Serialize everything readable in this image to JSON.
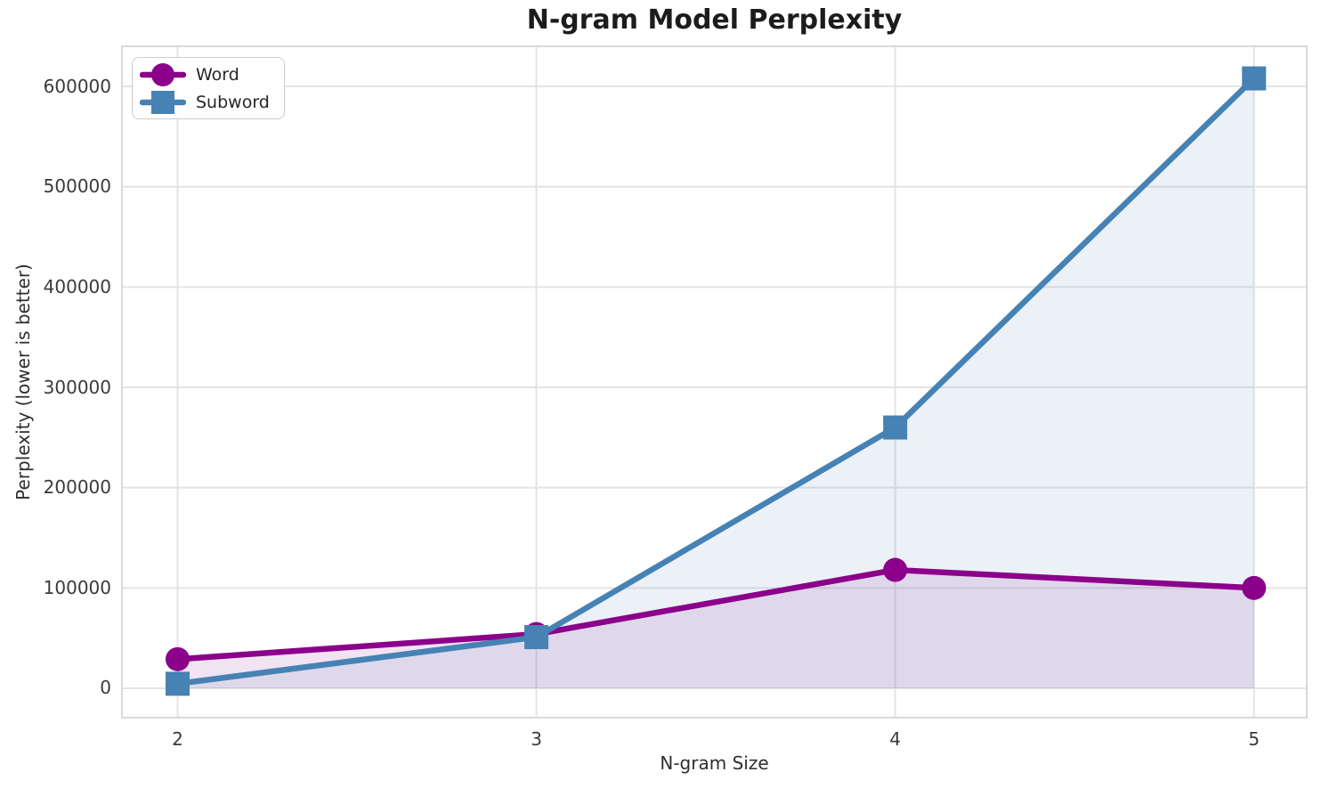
{
  "chart_data": {
    "type": "line",
    "title": "N-gram Model Perplexity",
    "xlabel": "N-gram Size",
    "ylabel": "Perplexity (lower is better)",
    "x": [
      2,
      3,
      4,
      5
    ],
    "series": [
      {
        "name": "Word",
        "marker": "circle",
        "color": "#8B008B",
        "fill_alpha": 0.11,
        "values": [
          29000,
          54000,
          118000,
          100000
        ]
      },
      {
        "name": "Subword",
        "marker": "square",
        "color": "#4682B4",
        "fill_alpha": 0.11,
        "values": [
          4500,
          51000,
          260000,
          608000
        ]
      }
    ],
    "xticks": [
      2,
      3,
      4,
      5
    ],
    "yticks": [
      0,
      100000,
      200000,
      300000,
      400000,
      500000,
      600000
    ],
    "xlim": [
      1.845,
      5.147
    ],
    "ylim": [
      -29300,
      640000
    ],
    "grid": true,
    "grid_color": "#e4e4e4",
    "spine_color": "#d9d9d9",
    "background": "#ffffff",
    "legend_position": "upper left",
    "legend_labels": [
      "Word",
      "Subword"
    ]
  }
}
